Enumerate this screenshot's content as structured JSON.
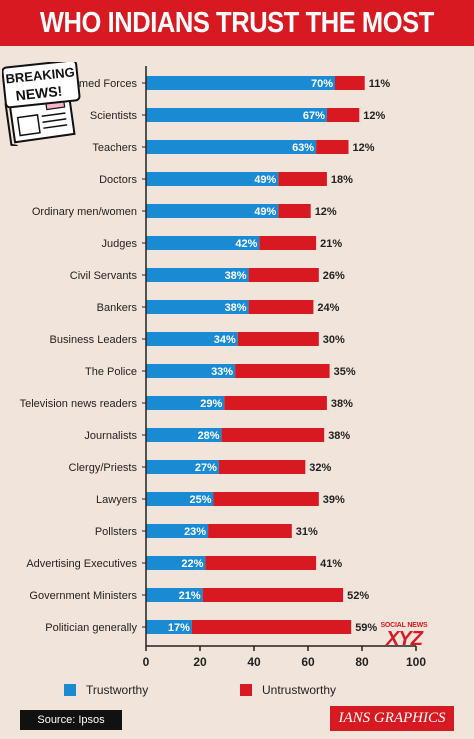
{
  "header": {
    "title": "WHO INDIANS TRUST THE MOST"
  },
  "stamp": {
    "line1": "BREAKING",
    "line2": "NEWS!"
  },
  "legend": {
    "trustworthy": "Trustworthy",
    "untrustworthy": "Untrustworthy"
  },
  "footer": {
    "source": "Source: Ipsos",
    "credit": "IANS GRAPHICS"
  },
  "watermark": {
    "top": "SOCIAL NEWS",
    "brand": "XYZ"
  },
  "colors": {
    "trustworthy": "#1a8bd3",
    "untrustworthy": "#d71921",
    "background": "#f1e4da"
  },
  "chart_data": {
    "type": "bar",
    "orientation": "horizontal",
    "stacked": true,
    "title": "WHO INDIANS TRUST THE MOST",
    "xlim": [
      0,
      100
    ],
    "xticks": [
      0,
      20,
      40,
      60,
      80,
      100
    ],
    "legend_position": "bottom",
    "categories": [
      "Armed Forces",
      "Scientists",
      "Teachers",
      "Doctors",
      "Ordinary men/women",
      "Judges",
      "Civil Servants",
      "Bankers",
      "Business Leaders",
      "The Police",
      "Television news readers",
      "Journalists",
      "Clergy/Priests",
      "Lawyers",
      "Pollsters",
      "Advertising Executives",
      "Government Ministers",
      "Politician generally"
    ],
    "series": [
      {
        "name": "Trustworthy",
        "values": [
          70,
          67,
          63,
          49,
          49,
          42,
          38,
          38,
          34,
          33,
          29,
          28,
          27,
          25,
          23,
          22,
          21,
          17
        ]
      },
      {
        "name": "Untrustworthy",
        "values": [
          11,
          12,
          12,
          18,
          12,
          21,
          26,
          24,
          30,
          35,
          38,
          38,
          32,
          39,
          31,
          41,
          52,
          59
        ]
      }
    ]
  }
}
